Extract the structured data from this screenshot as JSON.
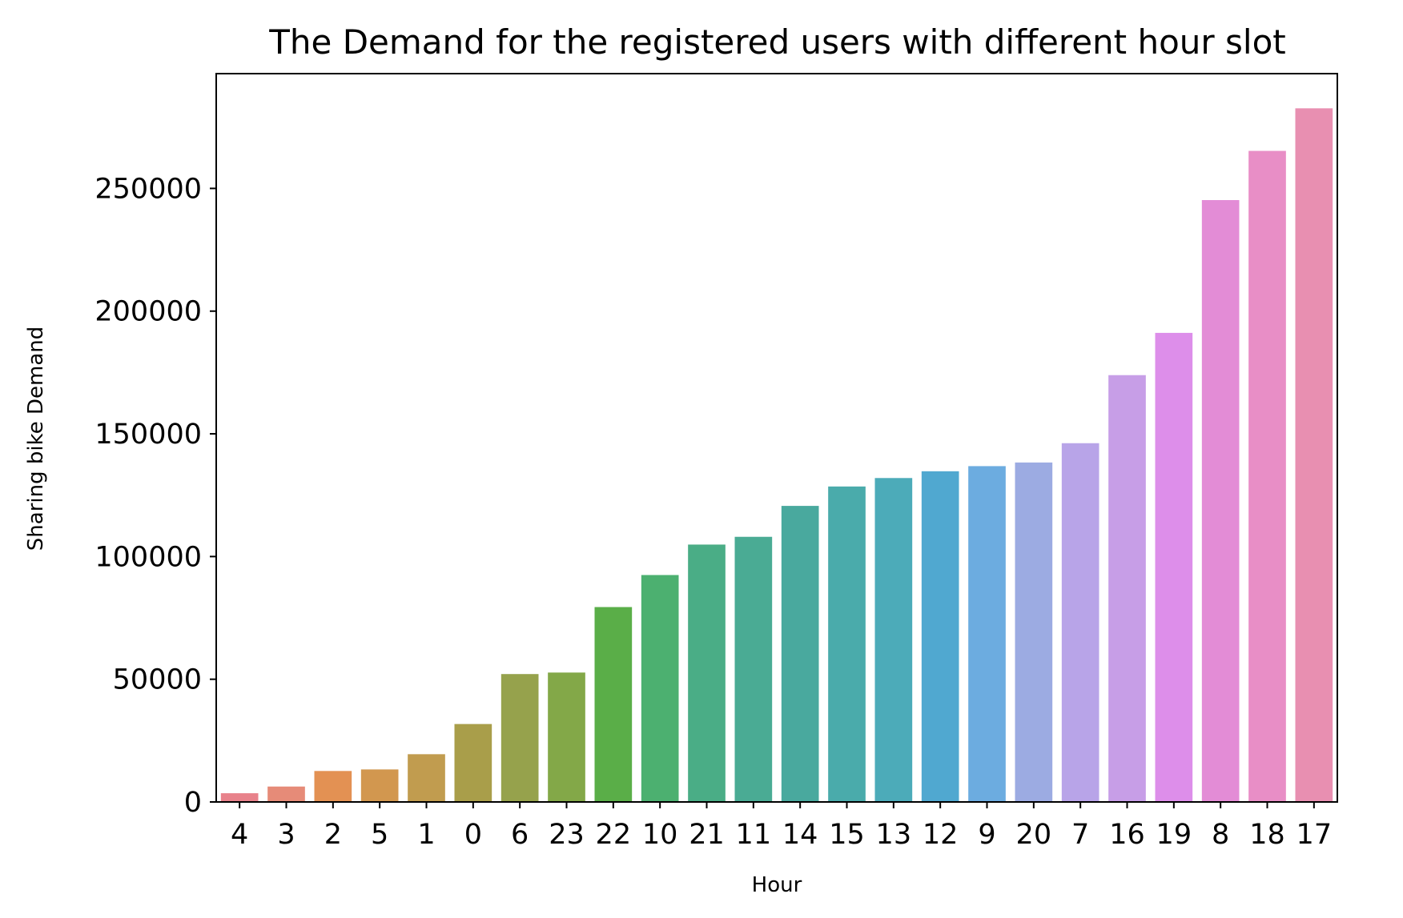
{
  "chart_data": {
    "type": "bar",
    "title": "The Demand for the registered users with different hour slot",
    "xlabel": "Hour",
    "ylabel": "Sharing bike Demand",
    "categories": [
      "4",
      "3",
      "2",
      "5",
      "1",
      "0",
      "6",
      "23",
      "22",
      "10",
      "21",
      "11",
      "14",
      "15",
      "13",
      "12",
      "9",
      "20",
      "7",
      "16",
      "19",
      "8",
      "18",
      "17"
    ],
    "values": [
      3554,
      6281,
      12617,
      13249,
      19455,
      31755,
      52115,
      52728,
      79412,
      92467,
      104875,
      108034,
      120637,
      128543,
      131988,
      134750,
      136838,
      138321,
      146182,
      173914,
      191136,
      245242,
      265290,
      282640
    ],
    "colors": [
      "#e8828b",
      "#e68b78",
      "#e39153",
      "#d2974f",
      "#c19c4f",
      "#a99e4a",
      "#96a24c",
      "#83a848",
      "#5aae48",
      "#4cb070",
      "#4aad86",
      "#4aab94",
      "#49a99e",
      "#4aabab",
      "#4cabb9",
      "#50a8d0",
      "#6cace0",
      "#9cabe2",
      "#b8a4e8",
      "#c79ee7",
      "#dd8eea",
      "#e38cd6",
      "#e88ec6",
      "#e88fb1"
    ],
    "yticks": [
      0,
      50000,
      100000,
      150000,
      200000,
      250000
    ],
    "ylim": [
      0,
      296772
    ],
    "grid": false,
    "legend": "none"
  }
}
